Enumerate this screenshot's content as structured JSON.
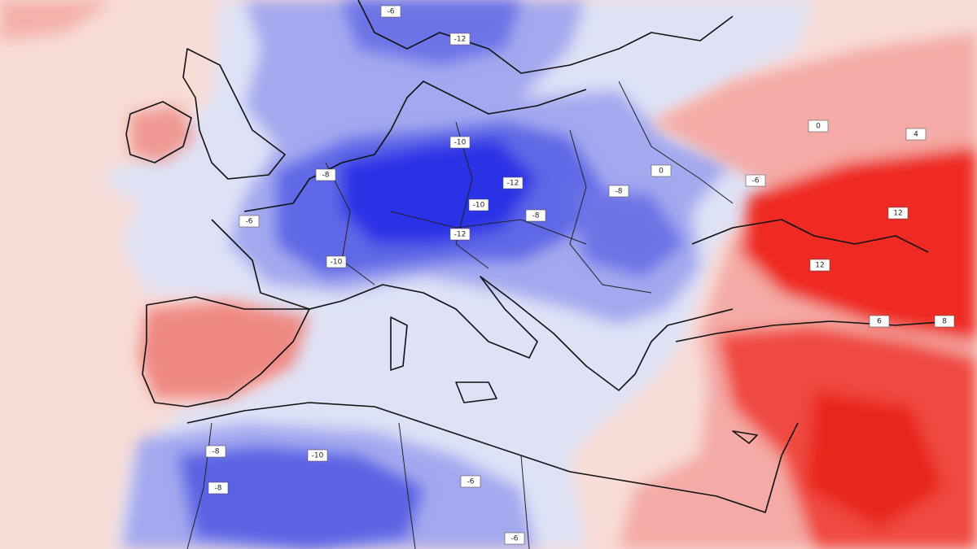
{
  "labels": [
    "-6",
    "-12",
    "-8",
    "-10",
    "-12",
    "-10",
    "-12",
    "-8",
    "-10",
    "-6",
    "-8",
    "-6",
    "12",
    "12",
    "6",
    "-8",
    "-10",
    "-8",
    "-6",
    "0",
    "0",
    "4",
    "8",
    "-6"
  ]
}
